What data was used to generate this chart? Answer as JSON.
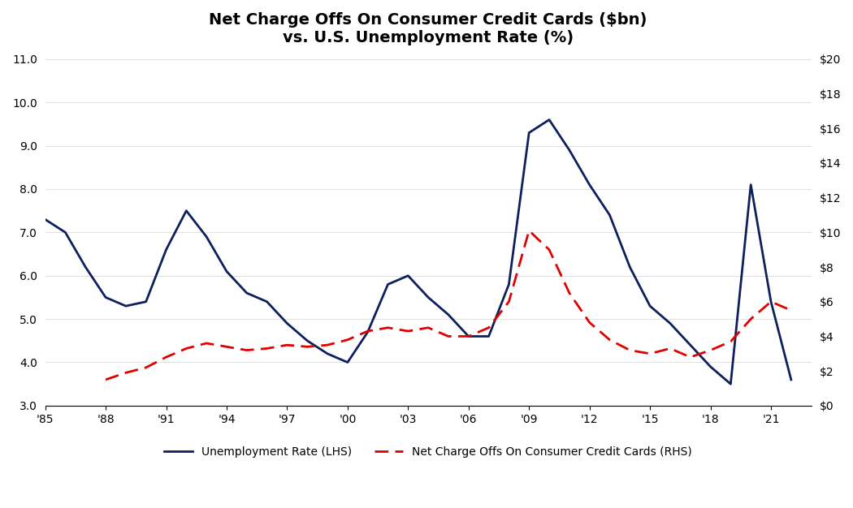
{
  "title": "Net Charge Offs On Consumer Credit Cards ($bn)\nvs. U.S. Unemployment Rate (%)",
  "background_color": "#ffffff",
  "lhs_color": "#0d1f5c",
  "rhs_color": "#e00000",
  "lhs_label": "Unemployment Rate (LHS)",
  "rhs_label": "Net Charge Offs On Consumer Credit Cards (RHS)",
  "years": [
    1985,
    1986,
    1987,
    1988,
    1989,
    1990,
    1991,
    1992,
    1993,
    1994,
    1995,
    1996,
    1997,
    1998,
    1999,
    2000,
    2001,
    2002,
    2003,
    2004,
    2005,
    2006,
    2007,
    2008,
    2009,
    2010,
    2011,
    2012,
    2013,
    2014,
    2015,
    2016,
    2017,
    2018,
    2019,
    2020,
    2021,
    2022
  ],
  "unemployment": [
    7.3,
    7.0,
    6.2,
    5.5,
    5.3,
    5.4,
    6.6,
    7.5,
    6.9,
    6.1,
    5.6,
    5.4,
    4.9,
    4.5,
    4.2,
    4.0,
    4.7,
    5.8,
    6.0,
    5.5,
    5.1,
    4.6,
    4.6,
    5.8,
    9.3,
    9.6,
    8.9,
    8.1,
    7.4,
    6.2,
    5.3,
    4.9,
    4.4,
    3.9,
    3.5,
    8.1,
    5.4,
    3.6
  ],
  "charge_offs": [
    null,
    null,
    null,
    1.5,
    1.9,
    2.2,
    2.8,
    3.3,
    3.6,
    3.4,
    3.2,
    3.3,
    3.5,
    3.4,
    3.5,
    3.8,
    4.3,
    4.5,
    4.3,
    4.5,
    4.0,
    4.0,
    4.5,
    6.0,
    10.1,
    9.0,
    6.5,
    4.8,
    3.8,
    3.2,
    3.0,
    3.3,
    2.8,
    3.2,
    3.7,
    5.0,
    6.0,
    5.5
  ],
  "lhs_ylim": [
    3.0,
    11.0
  ],
  "rhs_ylim": [
    0,
    20
  ],
  "lhs_yticks": [
    3.0,
    4.0,
    5.0,
    6.0,
    7.0,
    8.0,
    9.0,
    10.0,
    11.0
  ],
  "rhs_yticks": [
    0,
    2,
    4,
    6,
    8,
    10,
    12,
    14,
    16,
    18,
    20
  ],
  "rhs_yticklabels": [
    "$0",
    "$2",
    "$4",
    "$6",
    "$8",
    "$10",
    "$12",
    "$14",
    "$16",
    "$18",
    "$20"
  ],
  "xticks": [
    1985,
    1988,
    1991,
    1994,
    1997,
    2000,
    2003,
    2006,
    2009,
    2012,
    2015,
    2018,
    2021
  ],
  "xticklabels": [
    "'85",
    "'88",
    "'91",
    "'94",
    "'97",
    "'00",
    "'03",
    "'06",
    "'09",
    "'12",
    "'15",
    "'18",
    "'21"
  ],
  "xlim": [
    1985,
    2023
  ]
}
